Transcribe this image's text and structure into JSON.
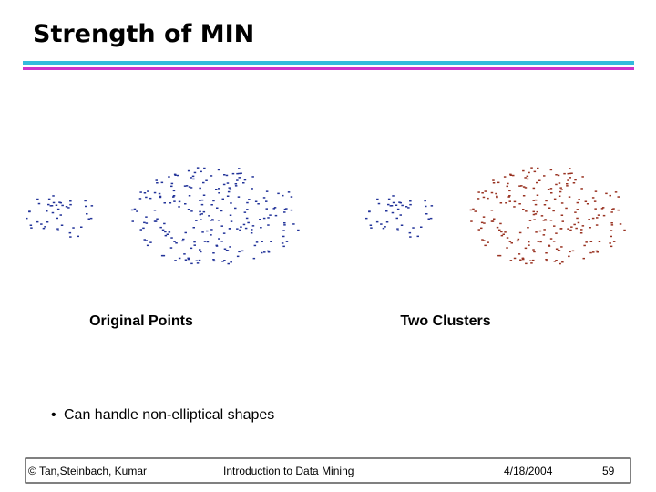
{
  "header": {
    "title": "Strength of MIN"
  },
  "captions": [
    "Original Points",
    "Two Clusters"
  ],
  "bullets": [
    "Can handle non-elliptical shapes"
  ],
  "footer": {
    "left": "© Tan,Steinbach, Kumar",
    "center": "Introduction to Data Mining",
    "date": "4/18/2004",
    "page": "59"
  }
}
